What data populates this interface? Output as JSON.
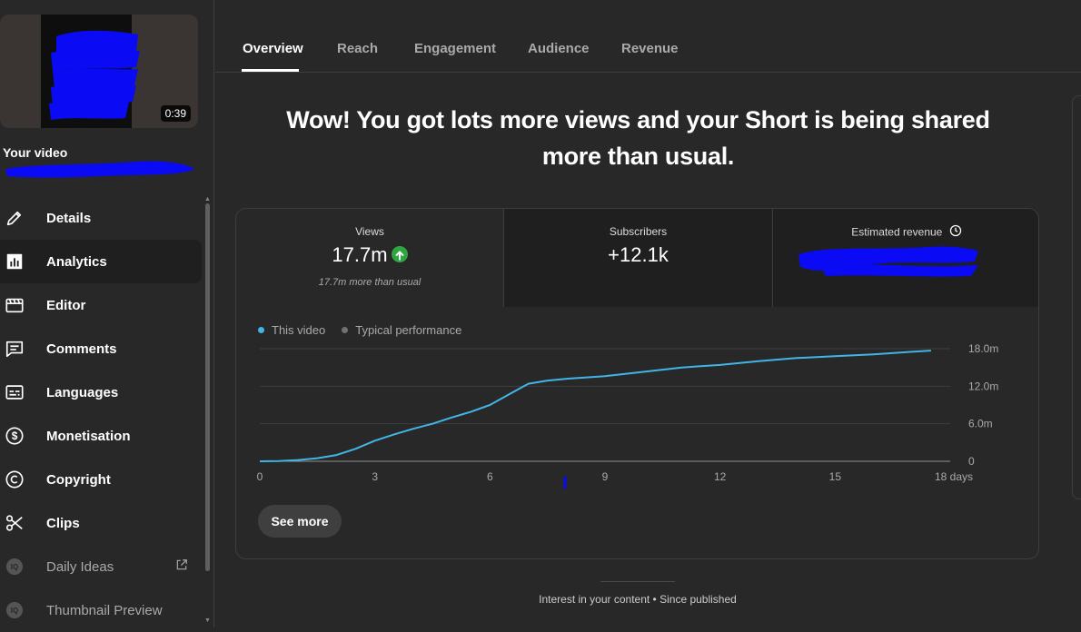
{
  "sidebar": {
    "duration": "0:39",
    "your_video": "Your video",
    "items": [
      {
        "label": "Details",
        "icon": "pencil-icon"
      },
      {
        "label": "Analytics",
        "icon": "analytics-icon"
      },
      {
        "label": "Editor",
        "icon": "clapperboard-icon"
      },
      {
        "label": "Comments",
        "icon": "comment-icon"
      },
      {
        "label": "Languages",
        "icon": "subtitles-icon"
      },
      {
        "label": "Monetisation",
        "icon": "dollar-icon"
      },
      {
        "label": "Copyright",
        "icon": "copyright-icon"
      },
      {
        "label": "Clips",
        "icon": "scissors-icon"
      },
      {
        "label": "Daily Ideas",
        "icon": "ext-app-icon"
      },
      {
        "label": "Thumbnail Preview",
        "icon": "ext-app-icon"
      }
    ],
    "ext_badge": "IQ"
  },
  "tabs": [
    "Overview",
    "Reach",
    "Engagement",
    "Audience",
    "Revenue"
  ],
  "headline": {
    "line1": "Wow! You got lots more views and your Short is being shared",
    "line2": "more than usual."
  },
  "metrics": {
    "views": {
      "label": "Views",
      "value": "17.7m",
      "sub": "17.7m more than usual"
    },
    "subscribers": {
      "label": "Subscribers",
      "value": "+12.1k"
    },
    "revenue": {
      "label": "Estimated revenue"
    }
  },
  "legend": {
    "this_video": "This video",
    "typical": "Typical performance"
  },
  "colors": {
    "series": "#41b5e6",
    "typical": "#717171",
    "up": "#2ba640",
    "background": "#282828"
  },
  "chart_data": {
    "type": "line",
    "xlabel": "",
    "ylabel": "",
    "x_ticks": [
      "0",
      "3",
      "6",
      "9",
      "12",
      "15",
      "18 days"
    ],
    "y_ticks": [
      "0",
      "6.0m",
      "12.0m",
      "18.0m"
    ],
    "xlim": [
      0,
      18
    ],
    "ylim": [
      0,
      18
    ],
    "grid": true,
    "series": [
      {
        "name": "This video",
        "x": [
          0,
          0.5,
          1,
          1.5,
          2,
          2.5,
          3,
          3.5,
          4,
          4.5,
          5,
          5.5,
          6,
          6.5,
          7,
          7.5,
          8,
          9,
          10,
          11,
          12,
          13,
          14,
          15,
          16,
          17,
          17.5
        ],
        "y": [
          0,
          0.05,
          0.2,
          0.5,
          1.0,
          2.0,
          3.3,
          4.3,
          5.2,
          6.0,
          7.0,
          7.9,
          9.0,
          10.7,
          12.4,
          12.9,
          13.2,
          13.6,
          14.3,
          15.0,
          15.4,
          16.0,
          16.5,
          16.8,
          17.1,
          17.5,
          17.7
        ]
      }
    ]
  },
  "see_more": "See more",
  "footer": "Interest in your content • Since published"
}
